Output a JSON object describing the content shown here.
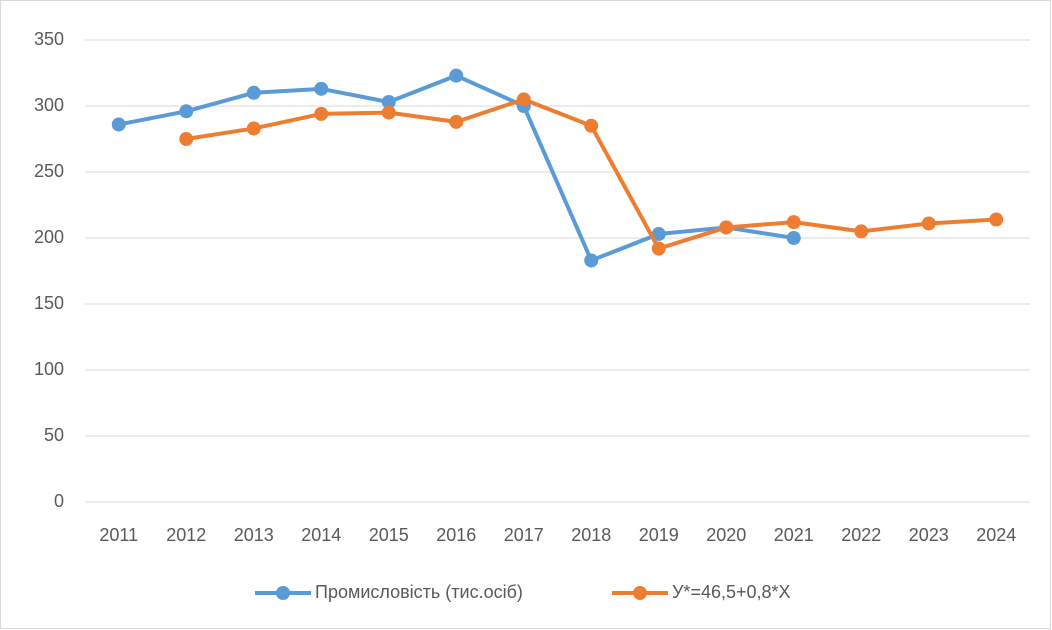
{
  "chart_data": {
    "type": "line",
    "categories": [
      "2011",
      "2012",
      "2013",
      "2014",
      "2015",
      "2016",
      "2017",
      "2018",
      "2019",
      "2020",
      "2021",
      "2022",
      "2023",
      "2024"
    ],
    "series": [
      {
        "name": "Промисловість (тис.осіб)",
        "color": "#5b9bd5",
        "values": [
          286,
          296,
          310,
          313,
          303,
          323,
          300,
          183,
          203,
          208,
          200,
          null,
          null,
          null
        ]
      },
      {
        "name": "У*=46,5+0,8*Х",
        "color": "#ed7d31",
        "values": [
          null,
          275,
          283,
          294,
          295,
          288,
          305,
          285,
          192,
          208,
          212,
          205,
          211,
          214
        ]
      }
    ],
    "ylim": [
      0,
      350
    ],
    "yticks": [
      0,
      50,
      100,
      150,
      200,
      250,
      300,
      350
    ],
    "grid": true,
    "legend": "bottom"
  }
}
